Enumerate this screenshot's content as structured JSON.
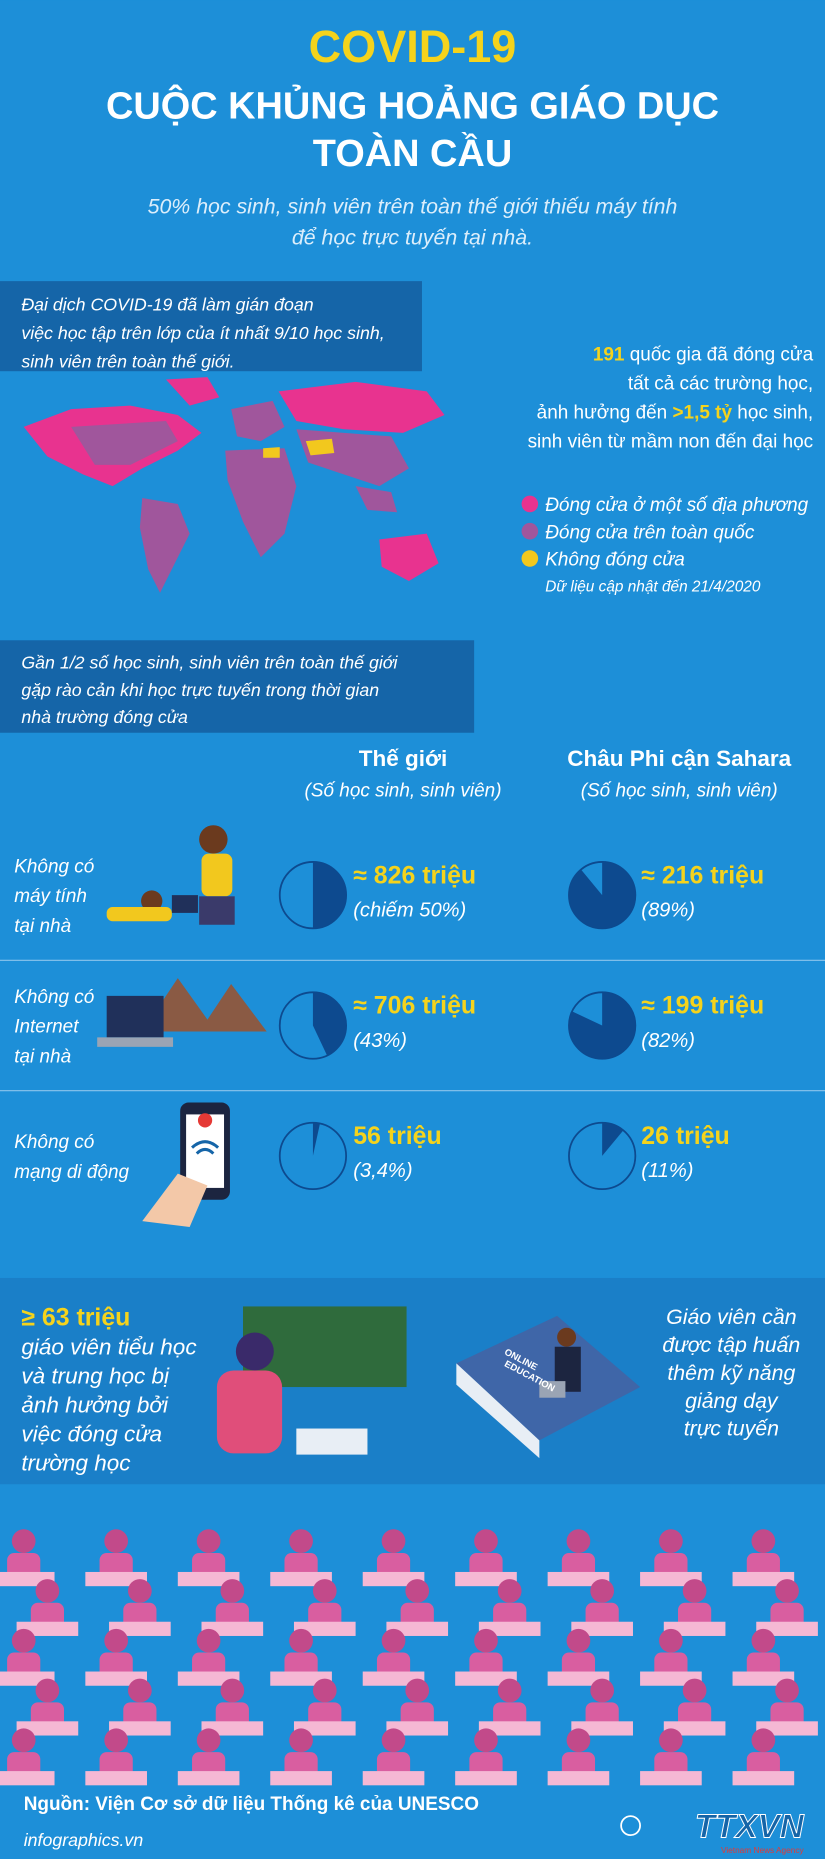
{
  "header": {
    "title": "COVID-19",
    "subtitle_lines": [
      "CUỘC KHỦNG HOẢNG GIÁO DỤC",
      "TOÀN CẦU"
    ],
    "intro_lines": [
      "50% học sinh, sinh viên trên toàn thế giới thiếu máy tính",
      "để học trực tuyến tại nhà."
    ]
  },
  "map_section": {
    "note_lines": [
      "Đại dịch COVID-19 đã làm gián đoạn",
      "việc học tập trên lớp của ít nhất 9/10 học sinh,",
      "sinh viên trên toàn thế giới."
    ],
    "stat_lines": [
      [
        {
          "text": "191",
          "highlight": true
        },
        {
          "text": " quốc gia đã đóng cửa",
          "highlight": false
        }
      ],
      [
        {
          "text": "tất cả các trường học,",
          "highlight": false
        }
      ],
      [
        {
          "text": "ảnh hưởng đến ",
          "highlight": false
        },
        {
          "text": ">1,5 tỷ",
          "highlight": true
        },
        {
          "text": " học sinh,",
          "highlight": false
        }
      ],
      [
        {
          "text": "sinh viên từ mầm non đến đại học",
          "highlight": false
        }
      ]
    ],
    "legend": [
      {
        "label": "Đóng cửa ở một số địa phương",
        "color": "#e8338f"
      },
      {
        "label": "Đóng cửa trên toàn quốc",
        "color": "#a0569c"
      },
      {
        "label": "Không đóng cửa",
        "color": "#f2c81e"
      }
    ],
    "update": "Dữ liệu cập nhật đến 21/4/2020"
  },
  "barriers": {
    "note_lines": [
      "Gần 1/2 số học sinh, sinh viên trên toàn thế giới",
      "gặp rào cản khi học trực tuyến trong thời gian",
      "nhà trường đóng cửa"
    ],
    "columns": [
      {
        "title": "Thế giới",
        "subtitle": "(Số học sinh, sinh viên)"
      },
      {
        "title": "Châu Phi cận Sahara",
        "subtitle": "(Số học sinh, sinh viên)"
      }
    ],
    "rows": [
      {
        "label_lines": [
          "Không có",
          "máy tính",
          "tại nhà"
        ],
        "stats": [
          {
            "count": "≈ 826 triệu",
            "share_label": "(chiếm 50%)",
            "share": 50
          },
          {
            "count": "≈ 216 triệu",
            "share_label": "(89%)",
            "share": 89
          }
        ]
      },
      {
        "label_lines": [
          "Không có",
          "Internet",
          "tại nhà"
        ],
        "stats": [
          {
            "count": "≈ 706 triệu",
            "share_label": "(43%)",
            "share": 43
          },
          {
            "count": "≈ 199 triệu",
            "share_label": "(82%)",
            "share": 82
          }
        ]
      },
      {
        "label_lines": [
          "Không có",
          "mạng di động"
        ],
        "stats": [
          {
            "count": "56 triệu",
            "share_label": "(3,4%)",
            "share": 3.4
          },
          {
            "count": "26 triệu",
            "share_label": "(11%)",
            "share": 11
          }
        ]
      }
    ]
  },
  "teachers": {
    "left_lines": [
      {
        "text": "≥ 63 triệu",
        "highlight": true
      },
      {
        "text": "giáo viên tiểu học",
        "highlight": false
      },
      {
        "text": "và trung học bị",
        "highlight": false
      },
      {
        "text": "ảnh hưởng bởi",
        "highlight": false
      },
      {
        "text": "việc đóng cửa",
        "highlight": false
      },
      {
        "text": "trường học",
        "highlight": false
      }
    ],
    "right_lines": [
      "Giáo viên cần",
      "được tập huấn",
      "thêm kỹ năng",
      "giảng dạy",
      "trực tuyến"
    ],
    "book_lines": [
      "ONLINE",
      "EDUCATION"
    ]
  },
  "footer": {
    "source": "Nguồn: Viện Cơ sở dữ liệu Thống kê của UNESCO",
    "site": "infographics.vn",
    "logo": "TTXVN",
    "logo_sub": "Vietnam News Agency"
  }
}
